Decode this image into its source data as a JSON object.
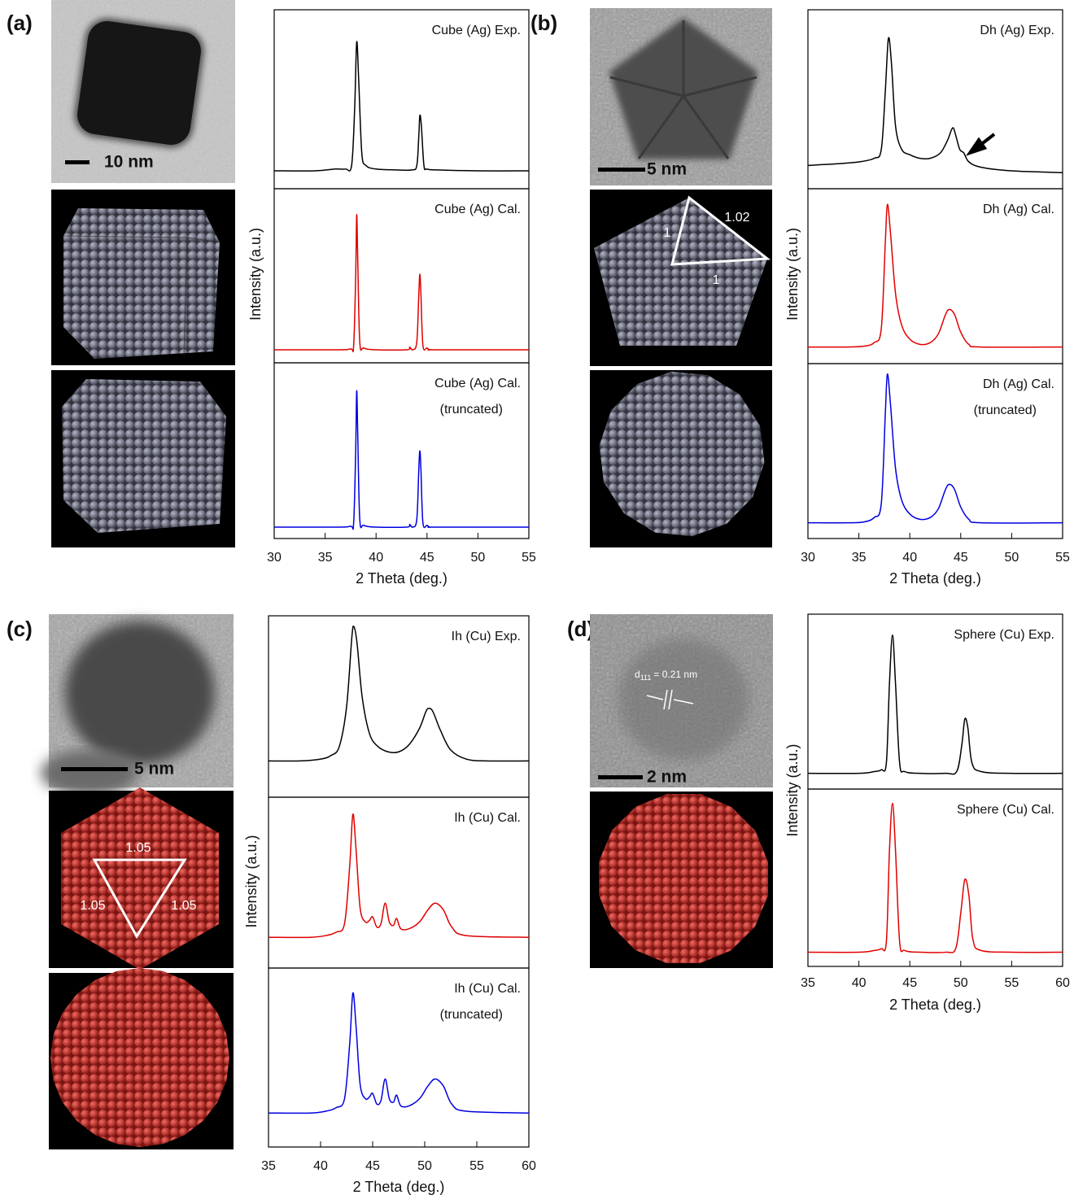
{
  "chart_data": [
    {
      "type": "line",
      "label": "(a)",
      "xlabel": "2 Theta (deg.)",
      "ylabel": "Intensity (a.u.)",
      "xlim": [
        30,
        55
      ],
      "xticks": [
        30,
        35,
        40,
        45,
        50,
        55
      ],
      "scale_bar": "10 nm",
      "subplots": [
        {
          "title": "Cube (Ag) Exp.",
          "color": "#000000",
          "ylim": [
            0,
            100
          ],
          "x": [
            30,
            34,
            36,
            37,
            37.6,
            37.9,
            38.1,
            38.3,
            38.6,
            39,
            40,
            42,
            43.5,
            44,
            44.2,
            44.3,
            44.45,
            44.7,
            45,
            46,
            50,
            55
          ],
          "values": [
            10,
            10,
            11,
            11,
            13,
            45,
            82,
            60,
            20,
            13,
            11,
            10.5,
            10.5,
            13,
            30,
            41,
            35,
            13,
            11,
            10.5,
            10,
            10
          ]
        },
        {
          "title": "Cube (Ag) Cal.",
          "color": "#e00000",
          "ylim": [
            0,
            100
          ],
          "x": [
            30,
            36,
            37.5,
            37.8,
            38.0,
            38.1,
            38.2,
            38.4,
            38.8,
            40,
            43,
            43.3,
            43.6,
            44,
            44.2,
            44.3,
            44.4,
            44.6,
            45,
            45.3,
            46,
            55
          ],
          "values": [
            7.5,
            7.5,
            8,
            10,
            50,
            85,
            60,
            12,
            8.5,
            7.5,
            7.5,
            9,
            7.5,
            12,
            40,
            51,
            40,
            10,
            8.5,
            7.5,
            7.5,
            7.5
          ]
        },
        {
          "title": "Cube (Ag) Cal.",
          "subtitle": "(truncated)",
          "color": "#0000e0",
          "ylim": [
            0,
            100
          ],
          "x": [
            30,
            36,
            37.5,
            37.8,
            38.0,
            38.1,
            38.2,
            38.4,
            38.8,
            40,
            43,
            43.3,
            43.6,
            44,
            44.2,
            44.3,
            44.4,
            44.6,
            45,
            45.3,
            46,
            55
          ],
          "values": [
            6.5,
            6.5,
            7,
            9,
            50,
            84,
            60,
            11,
            7.5,
            6.5,
            6.5,
            8,
            6.5,
            11,
            40,
            50,
            40,
            9,
            7.5,
            6.5,
            6.5,
            6.5
          ]
        }
      ]
    },
    {
      "type": "line",
      "label": "(b)",
      "xlabel": "2 Theta (deg.)",
      "ylabel": "Intensity (a.u.)",
      "xlim": [
        30,
        55
      ],
      "xticks": [
        30,
        35,
        40,
        45,
        50,
        55
      ],
      "scale_bar": "5 nm",
      "notes": [
        "1",
        "1.02",
        "1"
      ],
      "subplots": [
        {
          "title": "Dh (Ag) Exp.",
          "color": "#000000",
          "ylim": [
            0,
            100
          ],
          "x": [
            30,
            33,
            35,
            36.5,
            37.2,
            37.6,
            37.9,
            38.2,
            38.6,
            39.2,
            40,
            41,
            42,
            43,
            43.7,
            44.2,
            44.5,
            44.9,
            45.3,
            45.8,
            47,
            50,
            55
          ],
          "values": [
            13,
            14,
            15,
            17,
            22,
            55,
            84,
            70,
            35,
            22,
            19,
            17,
            17,
            20,
            27,
            34,
            30,
            22,
            20,
            15,
            12,
            10,
            9
          ]
        },
        {
          "title": "Dh (Ag) Cal.",
          "color": "#e00000",
          "ylim": [
            0,
            100
          ],
          "x": [
            30,
            34,
            35.5,
            36.5,
            37.2,
            37.6,
            37.8,
            38.1,
            38.6,
            39.2,
            40,
            41,
            42,
            42.8,
            43.5,
            43.9,
            44.4,
            45,
            45.8,
            47,
            55
          ],
          "values": [
            9.5,
            9.5,
            10,
            12,
            20,
            70,
            91,
            75,
            40,
            22,
            14,
            11,
            12,
            17,
            28,
            31,
            28,
            18,
            11,
            9.5,
            9.5
          ]
        },
        {
          "title": "Dh (Ag) Cal.",
          "subtitle": "(truncated)",
          "color": "#0000e0",
          "ylim": [
            0,
            100
          ],
          "x": [
            30,
            34,
            35.5,
            36.5,
            37.2,
            37.6,
            37.8,
            38.1,
            38.6,
            39.2,
            40,
            41,
            42,
            42.8,
            43.5,
            43.9,
            44.4,
            45,
            45.8,
            47,
            55
          ],
          "values": [
            9,
            9,
            9.5,
            12,
            20,
            72,
            94,
            77,
            40,
            22,
            14,
            11,
            12,
            17,
            28,
            31,
            28,
            18,
            11,
            9,
            9
          ]
        }
      ]
    },
    {
      "type": "line",
      "label": "(c)",
      "xlabel": "2 Theta (deg.)",
      "ylabel": "Intensity (a.u.)",
      "xlim": [
        35,
        60
      ],
      "xticks": [
        35,
        40,
        45,
        50,
        55,
        60
      ],
      "scale_bar": "5 nm",
      "notes": [
        "1.05",
        "1.05",
        "1.05"
      ],
      "subplots": [
        {
          "title": "Ih (Cu) Exp.",
          "color": "#000000",
          "ylim": [
            0,
            100
          ],
          "x": [
            35,
            38,
            40,
            41,
            41.8,
            42.5,
            43,
            43.2,
            43.5,
            44,
            44.7,
            45.5,
            46.5,
            47.5,
            48.5,
            49.5,
            50.1,
            50.4,
            50.8,
            51.5,
            52.5,
            54,
            56,
            60
          ],
          "values": [
            20,
            20,
            21,
            23,
            28,
            50,
            88,
            94,
            85,
            55,
            35,
            28,
            25,
            25,
            29,
            38,
            47,
            49,
            47,
            37,
            26,
            21,
            20,
            20
          ]
        },
        {
          "title": "Ih (Cu) Cal.",
          "color": "#e00000",
          "ylim": [
            0,
            100
          ],
          "x": [
            35,
            39,
            40.5,
            41.5,
            42.3,
            42.8,
            43.1,
            43.4,
            43.8,
            44.3,
            44.7,
            45.0,
            45.4,
            45.8,
            46.2,
            46.6,
            47.0,
            47.3,
            47.7,
            48.5,
            49.5,
            50.3,
            51,
            51.8,
            52.6,
            54,
            60
          ],
          "values": [
            18,
            18,
            19,
            21,
            26,
            60,
            90,
            70,
            35,
            27,
            28,
            30,
            24,
            26,
            38,
            27,
            25,
            29,
            23,
            23,
            27,
            34,
            38,
            34,
            24,
            19,
            18
          ]
        },
        {
          "title": "Ih (Cu) Cal.",
          "subtitle": "(truncated)",
          "color": "#0000e0",
          "ylim": [
            0,
            100
          ],
          "x": [
            35,
            39,
            40.5,
            41.5,
            42.3,
            42.8,
            43.1,
            43.4,
            43.8,
            44.3,
            44.7,
            45.0,
            45.4,
            45.8,
            46.2,
            46.6,
            47.0,
            47.3,
            47.7,
            48.5,
            49.5,
            50.3,
            51,
            51.8,
            52.6,
            54,
            60
          ],
          "values": [
            19,
            19,
            20,
            22,
            27,
            58,
            86,
            68,
            35,
            27,
            28,
            30,
            24,
            26,
            38,
            27,
            25,
            29,
            23,
            23,
            27,
            34,
            38,
            34,
            24,
            20,
            19
          ]
        }
      ]
    },
    {
      "type": "line",
      "label": "(d)",
      "xlabel": "2 Theta (deg.)",
      "ylabel": "Intensity (a.u.)",
      "xlim": [
        35,
        60
      ],
      "xticks": [
        35,
        40,
        45,
        50,
        55,
        60
      ],
      "scale_bar": "2 nm",
      "lattice": {
        "symbol": "d",
        "subscript": "111",
        "text": "= 0.21 nm"
      },
      "subplots": [
        {
          "title": "Sphere (Cu) Exp.",
          "color": "#000000",
          "ylim": [
            0,
            100
          ],
          "x": [
            35,
            40,
            41.5,
            42.2,
            42.7,
            43.0,
            43.3,
            43.6,
            44,
            44.5,
            46,
            48.5,
            49.6,
            50.1,
            50.4,
            50.7,
            51.1,
            52,
            55,
            60
          ],
          "values": [
            9,
            9,
            10,
            11,
            15,
            60,
            88,
            60,
            15,
            10,
            9,
            9,
            10,
            25,
            40,
            35,
            15,
            10,
            9,
            9
          ]
        },
        {
          "title": "Sphere (Cu) Cal.",
          "color": "#e00000",
          "ylim": [
            0,
            100
          ],
          "x": [
            35,
            40,
            41.5,
            42.2,
            42.7,
            43.0,
            43.3,
            43.6,
            44,
            44.5,
            46,
            48.5,
            49.5,
            50.0,
            50.4,
            50.8,
            51.2,
            52,
            55,
            60
          ],
          "values": [
            8,
            8,
            9,
            10,
            14,
            65,
            92,
            65,
            14,
            9,
            8,
            8,
            10,
            30,
            49,
            40,
            15,
            9,
            8,
            8
          ]
        }
      ]
    }
  ]
}
